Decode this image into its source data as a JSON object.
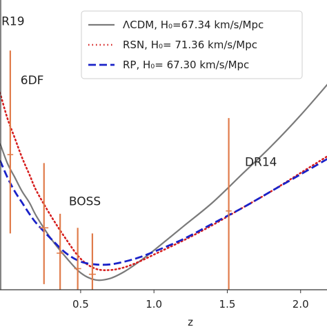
{
  "chart_data": {
    "type": "line",
    "xlabel": "z",
    "ylabel": "",
    "xlim": [
      -0.05,
      2.18
    ],
    "ylim": [
      0,
      100
    ],
    "xticks": [
      {
        "value": 0.5,
        "label": "0.5"
      },
      {
        "value": 1.0,
        "label": "1.0"
      },
      {
        "value": 1.5,
        "label": "1.5"
      },
      {
        "value": 2.0,
        "label": "2.0"
      }
    ],
    "grid": false,
    "legend_position": "top-right",
    "colors": {
      "lcdm": "#7a7a7a",
      "rsn": "#d61f1f",
      "rp": "#1a22c8",
      "errorbar": "#e07b4a",
      "axis": "#333333"
    },
    "series": [
      {
        "name": "ΛCDM, H₀=67.34 km/s/Mpc",
        "style": "solid",
        "x": [
          -0.05,
          0.0,
          0.05,
          0.1,
          0.15,
          0.2,
          0.3,
          0.4,
          0.5,
          0.6,
          0.7,
          0.8,
          0.9,
          1.0,
          1.2,
          1.4,
          1.6,
          1.8,
          2.0,
          2.2
        ],
        "y": [
          52,
          45,
          40,
          35,
          31,
          26,
          18,
          11.5,
          6,
          3.5,
          4,
          6.5,
          10,
          14,
          22.5,
          31,
          41,
          51,
          62,
          74
        ]
      },
      {
        "name": "RSN, H₀= 71.36 km/s/Mpc",
        "style": "dotted",
        "x": [
          -0.05,
          0.0,
          0.05,
          0.1,
          0.15,
          0.2,
          0.3,
          0.4,
          0.5,
          0.6,
          0.7,
          0.8,
          0.9,
          1.0,
          1.2,
          1.4,
          1.6,
          1.8,
          2.0,
          2.2
        ],
        "y": [
          70,
          61,
          54,
          47,
          41,
          35,
          26,
          18,
          11,
          7.5,
          7,
          8,
          10,
          12.5,
          17.5,
          23,
          29,
          35,
          41.5,
          48
        ]
      },
      {
        "name": "RP, H₀= 67.30 km/s/Mpc",
        "style": "dashed",
        "x": [
          -0.05,
          0.0,
          0.05,
          0.1,
          0.15,
          0.2,
          0.3,
          0.4,
          0.5,
          0.6,
          0.7,
          0.8,
          0.9,
          1.0,
          1.2,
          1.4,
          1.6,
          1.8,
          2.0,
          2.2
        ],
        "y": [
          46,
          40,
          35,
          31,
          27,
          23.5,
          18,
          13,
          10,
          9,
          9,
          10,
          11.5,
          13.5,
          18,
          23.5,
          29,
          35,
          41,
          47
        ]
      }
    ],
    "errorbars": [
      {
        "x": 0.02,
        "y": 48,
        "ylow": 20,
        "yhigh": 85,
        "xerr": 0.02
      },
      {
        "x": 0.25,
        "y": 22,
        "ylow": 2,
        "yhigh": 45,
        "xerr": 0.03
      },
      {
        "x": 0.36,
        "y": 13,
        "ylow": 0,
        "yhigh": 27,
        "xerr": 0
      },
      {
        "x": 0.48,
        "y": 7.5,
        "ylow": -4,
        "yhigh": 22,
        "xerr": 0
      },
      {
        "x": 0.58,
        "y": 5.5,
        "ylow": -9,
        "yhigh": 20,
        "xerr": 0
      },
      {
        "x": 1.51,
        "y": 28,
        "ylow": -4,
        "yhigh": 61,
        "xerr": 0.02
      }
    ],
    "annotations": [
      {
        "text": "R19",
        "x": -0.04,
        "y": 94
      },
      {
        "text": "6DF",
        "x": 0.09,
        "y": 73
      },
      {
        "text": "BOSS",
        "x": 0.42,
        "y": 30
      },
      {
        "text": "DR14",
        "x": 1.62,
        "y": 44
      }
    ]
  }
}
